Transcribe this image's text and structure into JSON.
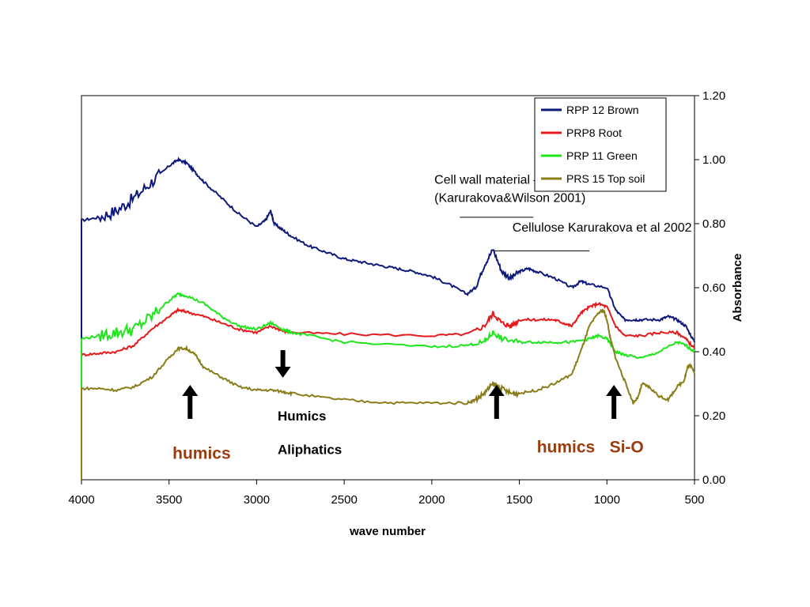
{
  "chart_data": {
    "type": "line",
    "xlabel": "wave number",
    "ylabel": "Absorbance",
    "xlim": [
      4000,
      500
    ],
    "x_reversed": true,
    "ylim": [
      0,
      1.2
    ],
    "x_ticks": [
      "4000",
      "3500",
      "3000",
      "2500",
      "2000",
      "1500",
      "1000",
      "500"
    ],
    "y_ticks": [
      "0.00",
      "0.20",
      "0.40",
      "0.60",
      "0.80",
      "1.00",
      "1.20"
    ],
    "grid": false,
    "legend_position": "top-right",
    "series": [
      {
        "name": "RPP 12 Brown",
        "color": "#0d1a7a",
        "points": [
          [
            4000,
            0.81
          ],
          [
            3900,
            0.82
          ],
          [
            3800,
            0.84
          ],
          [
            3700,
            0.88
          ],
          [
            3600,
            0.93
          ],
          [
            3500,
            0.98
          ],
          [
            3450,
            1.0
          ],
          [
            3400,
            0.99
          ],
          [
            3350,
            0.96
          ],
          [
            3300,
            0.93
          ],
          [
            3200,
            0.88
          ],
          [
            3100,
            0.83
          ],
          [
            3000,
            0.79
          ],
          [
            2950,
            0.81
          ],
          [
            2920,
            0.84
          ],
          [
            2900,
            0.8
          ],
          [
            2850,
            0.78
          ],
          [
            2800,
            0.76
          ],
          [
            2700,
            0.73
          ],
          [
            2600,
            0.71
          ],
          [
            2500,
            0.69
          ],
          [
            2400,
            0.68
          ],
          [
            2300,
            0.67
          ],
          [
            2200,
            0.66
          ],
          [
            2100,
            0.65
          ],
          [
            2000,
            0.635
          ],
          [
            1900,
            0.61
          ],
          [
            1800,
            0.58
          ],
          [
            1750,
            0.6
          ],
          [
            1700,
            0.67
          ],
          [
            1650,
            0.72
          ],
          [
            1600,
            0.65
          ],
          [
            1550,
            0.63
          ],
          [
            1500,
            0.65
          ],
          [
            1450,
            0.66
          ],
          [
            1400,
            0.65
          ],
          [
            1300,
            0.63
          ],
          [
            1200,
            0.6
          ],
          [
            1150,
            0.62
          ],
          [
            1100,
            0.61
          ],
          [
            1000,
            0.6
          ],
          [
            950,
            0.53
          ],
          [
            900,
            0.5
          ],
          [
            850,
            0.5
          ],
          [
            800,
            0.5
          ],
          [
            700,
            0.5
          ],
          [
            650,
            0.51
          ],
          [
            600,
            0.5
          ],
          [
            550,
            0.48
          ],
          [
            500,
            0.43
          ]
        ]
      },
      {
        "name": "PRP8 Root",
        "color": "#e6191c",
        "points": [
          [
            4000,
            0.39
          ],
          [
            3900,
            0.395
          ],
          [
            3800,
            0.4
          ],
          [
            3700,
            0.42
          ],
          [
            3600,
            0.47
          ],
          [
            3500,
            0.51
          ],
          [
            3450,
            0.53
          ],
          [
            3400,
            0.525
          ],
          [
            3300,
            0.51
          ],
          [
            3200,
            0.49
          ],
          [
            3100,
            0.47
          ],
          [
            3000,
            0.46
          ],
          [
            2920,
            0.48
          ],
          [
            2850,
            0.465
          ],
          [
            2800,
            0.46
          ],
          [
            2500,
            0.455
          ],
          [
            2000,
            0.45
          ],
          [
            1800,
            0.455
          ],
          [
            1700,
            0.48
          ],
          [
            1650,
            0.52
          ],
          [
            1600,
            0.49
          ],
          [
            1550,
            0.48
          ],
          [
            1500,
            0.5
          ],
          [
            1400,
            0.5
          ],
          [
            1300,
            0.5
          ],
          [
            1250,
            0.49
          ],
          [
            1200,
            0.48
          ],
          [
            1150,
            0.52
          ],
          [
            1100,
            0.54
          ],
          [
            1050,
            0.55
          ],
          [
            1000,
            0.54
          ],
          [
            950,
            0.48
          ],
          [
            900,
            0.45
          ],
          [
            800,
            0.45
          ],
          [
            700,
            0.46
          ],
          [
            600,
            0.46
          ],
          [
            550,
            0.44
          ],
          [
            500,
            0.41
          ]
        ]
      },
      {
        "name": "PRP 11 Green",
        "color": "#1ee61a",
        "points": [
          [
            4000,
            0.44
          ],
          [
            3900,
            0.45
          ],
          [
            3800,
            0.46
          ],
          [
            3700,
            0.47
          ],
          [
            3600,
            0.51
          ],
          [
            3500,
            0.56
          ],
          [
            3450,
            0.58
          ],
          [
            3400,
            0.575
          ],
          [
            3300,
            0.55
          ],
          [
            3200,
            0.51
          ],
          [
            3100,
            0.48
          ],
          [
            3000,
            0.47
          ],
          [
            2920,
            0.49
          ],
          [
            2850,
            0.47
          ],
          [
            2800,
            0.46
          ],
          [
            2700,
            0.45
          ],
          [
            2500,
            0.43
          ],
          [
            2000,
            0.415
          ],
          [
            1800,
            0.42
          ],
          [
            1700,
            0.43
          ],
          [
            1650,
            0.46
          ],
          [
            1600,
            0.44
          ],
          [
            1500,
            0.43
          ],
          [
            1400,
            0.43
          ],
          [
            1300,
            0.43
          ],
          [
            1200,
            0.43
          ],
          [
            1100,
            0.44
          ],
          [
            1050,
            0.45
          ],
          [
            1000,
            0.44
          ],
          [
            950,
            0.4
          ],
          [
            900,
            0.39
          ],
          [
            800,
            0.38
          ],
          [
            700,
            0.4
          ],
          [
            600,
            0.43
          ],
          [
            550,
            0.42
          ],
          [
            500,
            0.4
          ]
        ]
      },
      {
        "name": "PRS 15 Top soil",
        "color": "#8a7d1a",
        "points": [
          [
            4000,
            0.285
          ],
          [
            3900,
            0.285
          ],
          [
            3800,
            0.28
          ],
          [
            3700,
            0.29
          ],
          [
            3600,
            0.32
          ],
          [
            3500,
            0.38
          ],
          [
            3450,
            0.41
          ],
          [
            3400,
            0.41
          ],
          [
            3350,
            0.39
          ],
          [
            3300,
            0.35
          ],
          [
            3200,
            0.32
          ],
          [
            3100,
            0.29
          ],
          [
            3000,
            0.28
          ],
          [
            2920,
            0.28
          ],
          [
            2850,
            0.275
          ],
          [
            2800,
            0.27
          ],
          [
            2600,
            0.255
          ],
          [
            2400,
            0.245
          ],
          [
            2200,
            0.24
          ],
          [
            2000,
            0.24
          ],
          [
            1800,
            0.24
          ],
          [
            1750,
            0.25
          ],
          [
            1700,
            0.27
          ],
          [
            1650,
            0.3
          ],
          [
            1600,
            0.285
          ],
          [
            1550,
            0.27
          ],
          [
            1500,
            0.27
          ],
          [
            1400,
            0.28
          ],
          [
            1300,
            0.3
          ],
          [
            1200,
            0.33
          ],
          [
            1150,
            0.4
          ],
          [
            1100,
            0.48
          ],
          [
            1050,
            0.52
          ],
          [
            1020,
            0.53
          ],
          [
            1000,
            0.5
          ],
          [
            980,
            0.44
          ],
          [
            950,
            0.38
          ],
          [
            900,
            0.31
          ],
          [
            850,
            0.24
          ],
          [
            820,
            0.26
          ],
          [
            800,
            0.3
          ],
          [
            760,
            0.29
          ],
          [
            700,
            0.26
          ],
          [
            650,
            0.25
          ],
          [
            600,
            0.29
          ],
          [
            560,
            0.31
          ],
          [
            540,
            0.35
          ],
          [
            520,
            0.36
          ],
          [
            500,
            0.33
          ]
        ]
      }
    ],
    "annotations": [
      {
        "text": "Cell wall material –",
        "x": 1985,
        "y": 0.925,
        "style": "normal"
      },
      {
        "text": "(Karurakova&Wilson 2001)",
        "x": 1985,
        "y": 0.868,
        "style": "normal"
      },
      {
        "text": "Cellulose Karurakova et al 2002",
        "x": 1540,
        "y": 0.775,
        "style": "normal"
      },
      {
        "text": "Humics",
        "x": 2880,
        "y": 0.185,
        "style": "bold"
      },
      {
        "text": "Aliphatics",
        "x": 2880,
        "y": 0.08,
        "style": "bold"
      },
      {
        "text": "humics",
        "x": 3480,
        "y": 0.065,
        "style": "big",
        "color": "#9a3b0e"
      },
      {
        "text": "humics",
        "x": 1400,
        "y": 0.085,
        "style": "big",
        "color": "#9a3b0e"
      },
      {
        "text": "Si-O",
        "x": 985,
        "y": 0.085,
        "style": "big",
        "color": "#9a3b0e"
      }
    ],
    "arrows": [
      {
        "x": 3380,
        "direction": "up"
      },
      {
        "x": 2850,
        "direction": "down"
      },
      {
        "x": 1630,
        "direction": "up"
      },
      {
        "x": 960,
        "direction": "up"
      }
    ],
    "underline_segments": [
      {
        "x1": 1840,
        "x2": 1420,
        "y": 0.82
      },
      {
        "x1": 1640,
        "x2": 1100,
        "y": 0.715
      }
    ]
  }
}
